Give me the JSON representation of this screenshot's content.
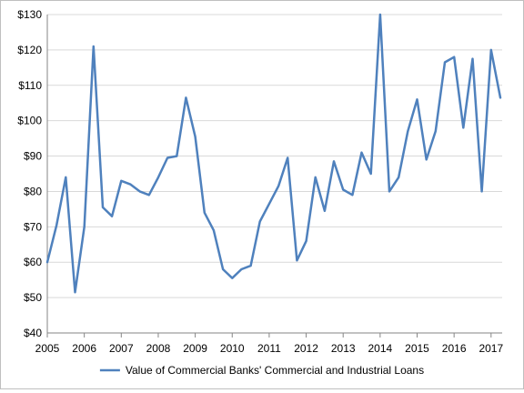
{
  "chart_data": {
    "type": "line",
    "title": "",
    "xlabel": "",
    "ylabel": "",
    "ylim": [
      40,
      130
    ],
    "y_ticks": [
      40,
      50,
      60,
      70,
      80,
      90,
      100,
      110,
      120,
      130
    ],
    "y_tick_labels": [
      "$40",
      "$50",
      "$60",
      "$70",
      "$80",
      "$90",
      "$100",
      "$110",
      "$120",
      "$130"
    ],
    "xlim": [
      2005,
      2017.3
    ],
    "x_ticks": [
      2005,
      2006,
      2007,
      2008,
      2009,
      2010,
      2011,
      2012,
      2013,
      2014,
      2015,
      2016,
      2017
    ],
    "x_tick_labels": [
      "2005",
      "2006",
      "2007",
      "2008",
      "2009",
      "2010",
      "2011",
      "2012",
      "2013",
      "2014",
      "2015",
      "2016",
      "2017"
    ],
    "grid": true,
    "legend_position": "bottom",
    "series": [
      {
        "name": "Value of Commercial Banks' Commercial and Industrial Loans",
        "color": "#4f81bd",
        "x": [
          2005,
          2005.25,
          2005.5,
          2005.75,
          2006,
          2006.25,
          2006.5,
          2006.75,
          2007,
          2007.25,
          2007.5,
          2007.75,
          2008,
          2008.25,
          2008.5,
          2008.75,
          2009,
          2009.25,
          2009.5,
          2009.75,
          2010,
          2010.25,
          2010.5,
          2010.75,
          2011,
          2011.25,
          2011.5,
          2011.75,
          2012,
          2012.25,
          2012.5,
          2012.75,
          2013,
          2013.25,
          2013.5,
          2013.75,
          2014,
          2014.25,
          2014.5,
          2014.75,
          2015,
          2015.25,
          2015.5,
          2015.75,
          2016,
          2016.25,
          2016.5,
          2016.75,
          2017,
          2017.25
        ],
        "values": [
          60,
          70.5,
          84,
          51.5,
          70,
          121,
          75.5,
          73,
          83,
          82,
          80,
          79,
          84,
          89.5,
          90,
          106.5,
          95.5,
          74,
          69,
          58,
          55.5,
          58,
          59,
          71.5,
          76.5,
          81.5,
          89.5,
          60.5,
          66,
          84,
          74.5,
          88.5,
          80.5,
          79,
          91,
          85,
          130,
          80,
          84,
          97,
          106,
          89,
          97,
          116.5,
          118,
          98,
          117.5,
          80,
          120,
          106.5
        ]
      }
    ]
  }
}
